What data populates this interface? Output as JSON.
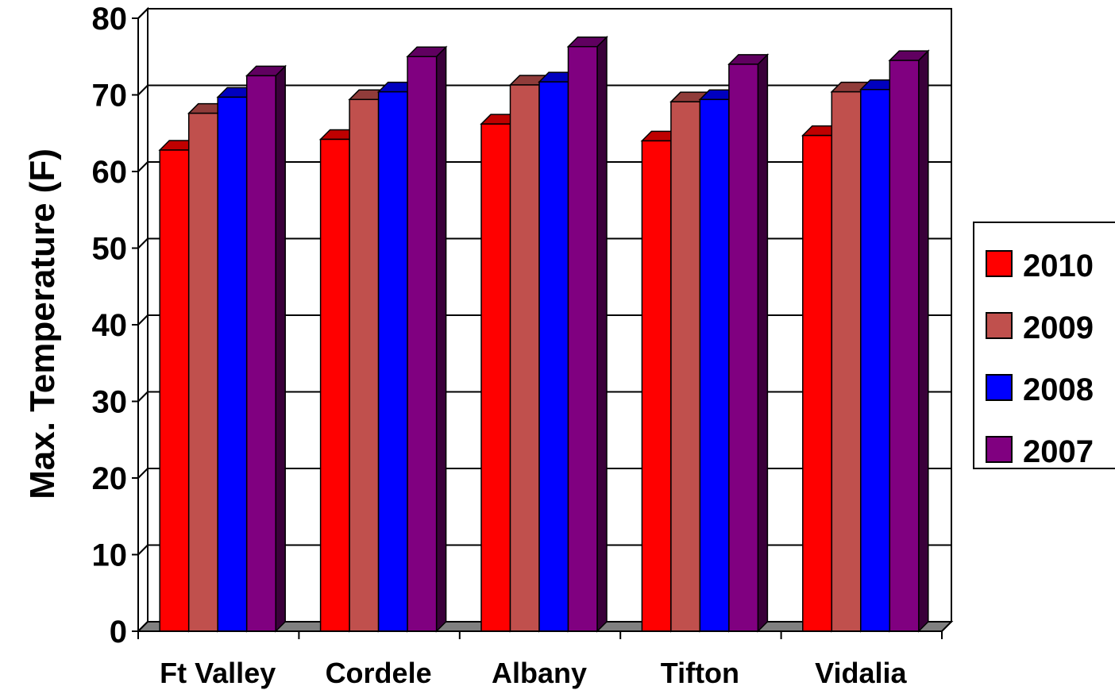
{
  "chart_data": {
    "type": "bar",
    "title": "",
    "xlabel": "",
    "ylabel": "Max. Temperature (F)",
    "ylim": [
      0,
      80
    ],
    "yticks": [
      0,
      10,
      20,
      30,
      40,
      50,
      60,
      70,
      80
    ],
    "grid": true,
    "legend_position": "right",
    "style": "3d-clustered-column",
    "categories": [
      "Ft Valley",
      "Cordele",
      "Albany",
      "Tifton",
      "Vidalia"
    ],
    "series": [
      {
        "name": "2010",
        "color": "#ff0000",
        "values": [
          62.8,
          64.2,
          66.2,
          64.0,
          64.7
        ]
      },
      {
        "name": "2009",
        "color": "#c0504d",
        "values": [
          67.6,
          69.4,
          71.3,
          69.1,
          70.4
        ]
      },
      {
        "name": "2008",
        "color": "#0000ff",
        "values": [
          69.7,
          70.4,
          71.7,
          69.4,
          70.7
        ]
      },
      {
        "name": "2007",
        "color": "#800080",
        "values": [
          72.5,
          75.0,
          76.3,
          74.0,
          74.5
        ]
      }
    ]
  }
}
